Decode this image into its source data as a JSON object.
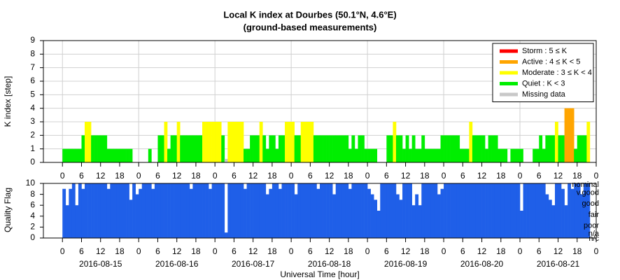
{
  "chart_data": [
    {
      "type": "bar",
      "title": "Local K index at Dourbes (50.1°N, 4.6°E)",
      "subtitle": "(ground-based measurements)",
      "y_label": "K index [step]",
      "xlim": [
        -6,
        168
      ],
      "ylim": [
        0,
        9
      ],
      "yticks": [
        0,
        1,
        2,
        3,
        4,
        5,
        6,
        7,
        8,
        9
      ],
      "grid": true,
      "legend": "upper right",
      "levels": [
        {
          "name": "Storm : 5 ≤ K",
          "color": "#ff0000",
          "min": 5
        },
        {
          "name": "Active : 4 ≤ K < 5",
          "color": "#ffa500",
          "min": 4
        },
        {
          "name": "Moderate : 3 ≤ K < 4",
          "color": "#ffff00",
          "min": 3
        },
        {
          "name": "Quiet : K < 3",
          "color": "#00ee00",
          "min": 0
        },
        {
          "name": "Missing data",
          "color": "#c8c8c8"
        }
      ],
      "xticks": [
        0,
        6,
        12,
        18,
        {
          "value": 24,
          "label": "0"
        },
        {
          "value": 30,
          "label": "6"
        },
        {
          "value": 36,
          "label": "12"
        },
        {
          "value": 42,
          "label": "18"
        },
        {
          "value": 48,
          "label": "0"
        },
        {
          "value": 54,
          "label": "6"
        },
        {
          "value": 60,
          "label": "12"
        },
        {
          "value": 66,
          "label": "18"
        },
        {
          "value": 72,
          "label": "0"
        },
        {
          "value": 78,
          "label": "6"
        },
        {
          "value": 84,
          "label": "12"
        },
        {
          "value": 90,
          "label": "18"
        },
        {
          "value": 96,
          "label": "0"
        },
        {
          "value": 102,
          "label": "6"
        },
        {
          "value": 108,
          "label": "12"
        },
        {
          "value": 114,
          "label": "18"
        },
        {
          "value": 120,
          "label": "0"
        },
        {
          "value": 126,
          "label": "6"
        },
        {
          "value": 132,
          "label": "12"
        },
        {
          "value": 138,
          "label": "18"
        },
        {
          "value": 144,
          "label": "0"
        },
        {
          "value": 150,
          "label": "6"
        },
        {
          "value": 156,
          "label": "12"
        },
        {
          "value": 162,
          "label": "18"
        },
        {
          "value": 168,
          "label": "0"
        }
      ],
      "x": [
        0,
        1,
        2,
        3,
        4,
        5,
        6,
        7,
        8,
        9,
        10,
        11,
        12,
        13,
        14,
        15,
        16,
        17,
        18,
        19,
        20,
        21,
        22,
        23,
        24,
        25,
        26,
        27,
        28,
        29,
        30,
        31,
        32,
        33,
        34,
        35,
        36,
        37,
        38,
        39,
        40,
        41,
        42,
        43,
        44,
        45,
        46,
        47,
        48,
        49,
        50,
        51,
        52,
        53,
        54,
        55,
        56,
        57,
        58,
        59,
        60,
        61,
        62,
        63,
        64,
        65,
        66,
        67,
        68,
        69,
        70,
        71,
        72,
        73,
        74,
        75,
        76,
        77,
        78,
        79,
        80,
        81,
        82,
        83,
        84,
        85,
        86,
        87,
        88,
        89,
        90,
        91,
        92,
        93,
        94,
        95,
        96,
        97,
        98,
        99,
        100,
        101,
        102,
        103,
        104,
        105,
        106,
        107,
        108,
        109,
        110,
        111,
        112,
        113,
        114,
        115,
        116,
        117,
        118,
        119,
        120,
        121,
        122,
        123,
        124,
        125,
        126,
        127,
        128,
        129,
        130,
        131,
        132,
        133,
        134,
        135,
        136,
        137,
        138,
        139,
        140,
        141,
        142,
        143,
        144,
        145,
        146,
        147,
        148,
        149,
        150,
        151,
        152,
        153,
        154,
        155,
        156,
        157,
        158,
        159,
        160,
        161,
        162,
        163,
        164,
        165,
        166,
        167
      ],
      "values": [
        1,
        1,
        1,
        1,
        1,
        1,
        2,
        3,
        3,
        2,
        2,
        2,
        2,
        2,
        1,
        1,
        1,
        1,
        1,
        1,
        1,
        1,
        0,
        0,
        0,
        0,
        0,
        1,
        0,
        0,
        2,
        2,
        3,
        1,
        2,
        2,
        3,
        2,
        2,
        2,
        2,
        2,
        2,
        2,
        3,
        3,
        3,
        3,
        3,
        3,
        2,
        null,
        3,
        3,
        3,
        3,
        3,
        1,
        1,
        2,
        2,
        2,
        3,
        2,
        1,
        2,
        2,
        1,
        2,
        2,
        3,
        3,
        3,
        2,
        2,
        3,
        3,
        3,
        3,
        2,
        2,
        2,
        2,
        2,
        2,
        2,
        2,
        2,
        2,
        2,
        1,
        2,
        1,
        2,
        2,
        1,
        1,
        1,
        1,
        0,
        0,
        0,
        2,
        2,
        3,
        2,
        2,
        1,
        2,
        1,
        2,
        1,
        1,
        2,
        1,
        1,
        1,
        1,
        1,
        2,
        2,
        2,
        2,
        2,
        2,
        1,
        1,
        1,
        3,
        2,
        2,
        2,
        2,
        1,
        2,
        2,
        2,
        1,
        1,
        1,
        0,
        1,
        1,
        1,
        1,
        0,
        0,
        0,
        1,
        1,
        2,
        1,
        2,
        2,
        2,
        3,
        2,
        2,
        4,
        4,
        4,
        1,
        2,
        2,
        2,
        3,
        0,
        0
      ]
    },
    {
      "type": "bar",
      "y_label": "Quality Flag",
      "x_label": "Universal Time [hour]",
      "color": "#1f5fe8",
      "xlim": [
        -6,
        168
      ],
      "ylim": [
        0,
        10
      ],
      "yticks": [
        0,
        2,
        4,
        6,
        8,
        10
      ],
      "flag_labels": [
        {
          "value": 10,
          "label": "nominal"
        },
        {
          "value": 8.5,
          "label": "v.good"
        },
        {
          "value": 6.5,
          "label": "good"
        },
        {
          "value": 4.5,
          "label": "fair"
        },
        {
          "value": 2.5,
          "label": "poor"
        },
        {
          "value": 1,
          "label": "n/a"
        },
        {
          "value": 0,
          "label": "n/c"
        }
      ],
      "xticks": [
        0,
        6,
        12,
        18,
        {
          "value": 24,
          "label": "0"
        },
        {
          "value": 30,
          "label": "6"
        },
        {
          "value": 36,
          "label": "12"
        },
        {
          "value": 42,
          "label": "18"
        },
        {
          "value": 48,
          "label": "0"
        },
        {
          "value": 54,
          "label": "6"
        },
        {
          "value": 60,
          "label": "12"
        },
        {
          "value": 66,
          "label": "18"
        },
        {
          "value": 72,
          "label": "0"
        },
        {
          "value": 78,
          "label": "6"
        },
        {
          "value": 84,
          "label": "12"
        },
        {
          "value": 90,
          "label": "18"
        },
        {
          "value": 96,
          "label": "0"
        },
        {
          "value": 102,
          "label": "6"
        },
        {
          "value": 108,
          "label": "12"
        },
        {
          "value": 114,
          "label": "18"
        },
        {
          "value": 120,
          "label": "0"
        },
        {
          "value": 126,
          "label": "6"
        },
        {
          "value": 132,
          "label": "12"
        },
        {
          "value": 138,
          "label": "18"
        },
        {
          "value": 144,
          "label": "0"
        },
        {
          "value": 150,
          "label": "6"
        },
        {
          "value": 156,
          "label": "12"
        },
        {
          "value": 162,
          "label": "18"
        },
        {
          "value": 168,
          "label": "0"
        }
      ],
      "dates": [
        {
          "value": 12,
          "label": "2016-08-15"
        },
        {
          "value": 36,
          "label": "2016-08-16"
        },
        {
          "value": 60,
          "label": "2016-08-17"
        },
        {
          "value": 84,
          "label": "2016-08-18"
        },
        {
          "value": 108,
          "label": "2016-08-19"
        },
        {
          "value": 132,
          "label": "2016-08-20"
        },
        {
          "value": 156,
          "label": "2016-08-21"
        }
      ],
      "x": [
        0,
        1,
        2,
        3,
        4,
        5,
        6,
        7,
        8,
        9,
        10,
        11,
        12,
        13,
        14,
        15,
        16,
        17,
        18,
        19,
        20,
        21,
        22,
        23,
        24,
        25,
        26,
        27,
        28,
        29,
        30,
        31,
        32,
        33,
        34,
        35,
        36,
        37,
        38,
        39,
        40,
        41,
        42,
        43,
        44,
        45,
        46,
        47,
        48,
        49,
        50,
        51,
        52,
        53,
        54,
        55,
        56,
        57,
        58,
        59,
        60,
        61,
        62,
        63,
        64,
        65,
        66,
        67,
        68,
        69,
        70,
        71,
        72,
        73,
        74,
        75,
        76,
        77,
        78,
        79,
        80,
        81,
        82,
        83,
        84,
        85,
        86,
        87,
        88,
        89,
        90,
        91,
        92,
        93,
        94,
        95,
        96,
        97,
        98,
        99,
        100,
        101,
        102,
        103,
        104,
        105,
        106,
        107,
        108,
        109,
        110,
        111,
        112,
        113,
        114,
        115,
        116,
        117,
        118,
        119,
        120,
        121,
        122,
        123,
        124,
        125,
        126,
        127,
        128,
        129,
        130,
        131,
        132,
        133,
        134,
        135,
        136,
        137,
        138,
        139,
        140,
        141,
        142,
        143,
        144,
        145,
        146,
        147,
        148,
        149,
        150,
        151,
        152,
        153,
        154,
        155,
        156,
        157,
        158,
        159,
        160,
        161,
        162,
        163,
        164,
        165,
        166,
        167
      ],
      "values": [
        9,
        6,
        9,
        10,
        6,
        10,
        9,
        10,
        10,
        10,
        10,
        10,
        10,
        10,
        9,
        10,
        10,
        10,
        10,
        10,
        10,
        7,
        10,
        8,
        9,
        10,
        10,
        10,
        9,
        10,
        10,
        10,
        10,
        10,
        10,
        10,
        10,
        10,
        10,
        10,
        9,
        10,
        10,
        10,
        10,
        10,
        9,
        10,
        10,
        10,
        10,
        1,
        10,
        10,
        10,
        10,
        10,
        9,
        10,
        10,
        10,
        10,
        10,
        10,
        8,
        9,
        10,
        10,
        9,
        10,
        10,
        10,
        10,
        8,
        10,
        10,
        10,
        10,
        10,
        10,
        9,
        10,
        10,
        10,
        10,
        8,
        10,
        10,
        10,
        10,
        9,
        10,
        10,
        10,
        10,
        10,
        9,
        8,
        7,
        5,
        10,
        10,
        10,
        10,
        10,
        8,
        7,
        10,
        10,
        10,
        6,
        8,
        6,
        10,
        10,
        10,
        10,
        10,
        8,
        9,
        10,
        10,
        10,
        10,
        10,
        10,
        10,
        10,
        10,
        10,
        10,
        10,
        10,
        10,
        10,
        10,
        10,
        10,
        10,
        10,
        10,
        10,
        10,
        10,
        5,
        10,
        10,
        10,
        10,
        10,
        10,
        10,
        8,
        7,
        6,
        10,
        10,
        9,
        6,
        10,
        9,
        10,
        10,
        8,
        10,
        10,
        null,
        null
      ]
    }
  ]
}
